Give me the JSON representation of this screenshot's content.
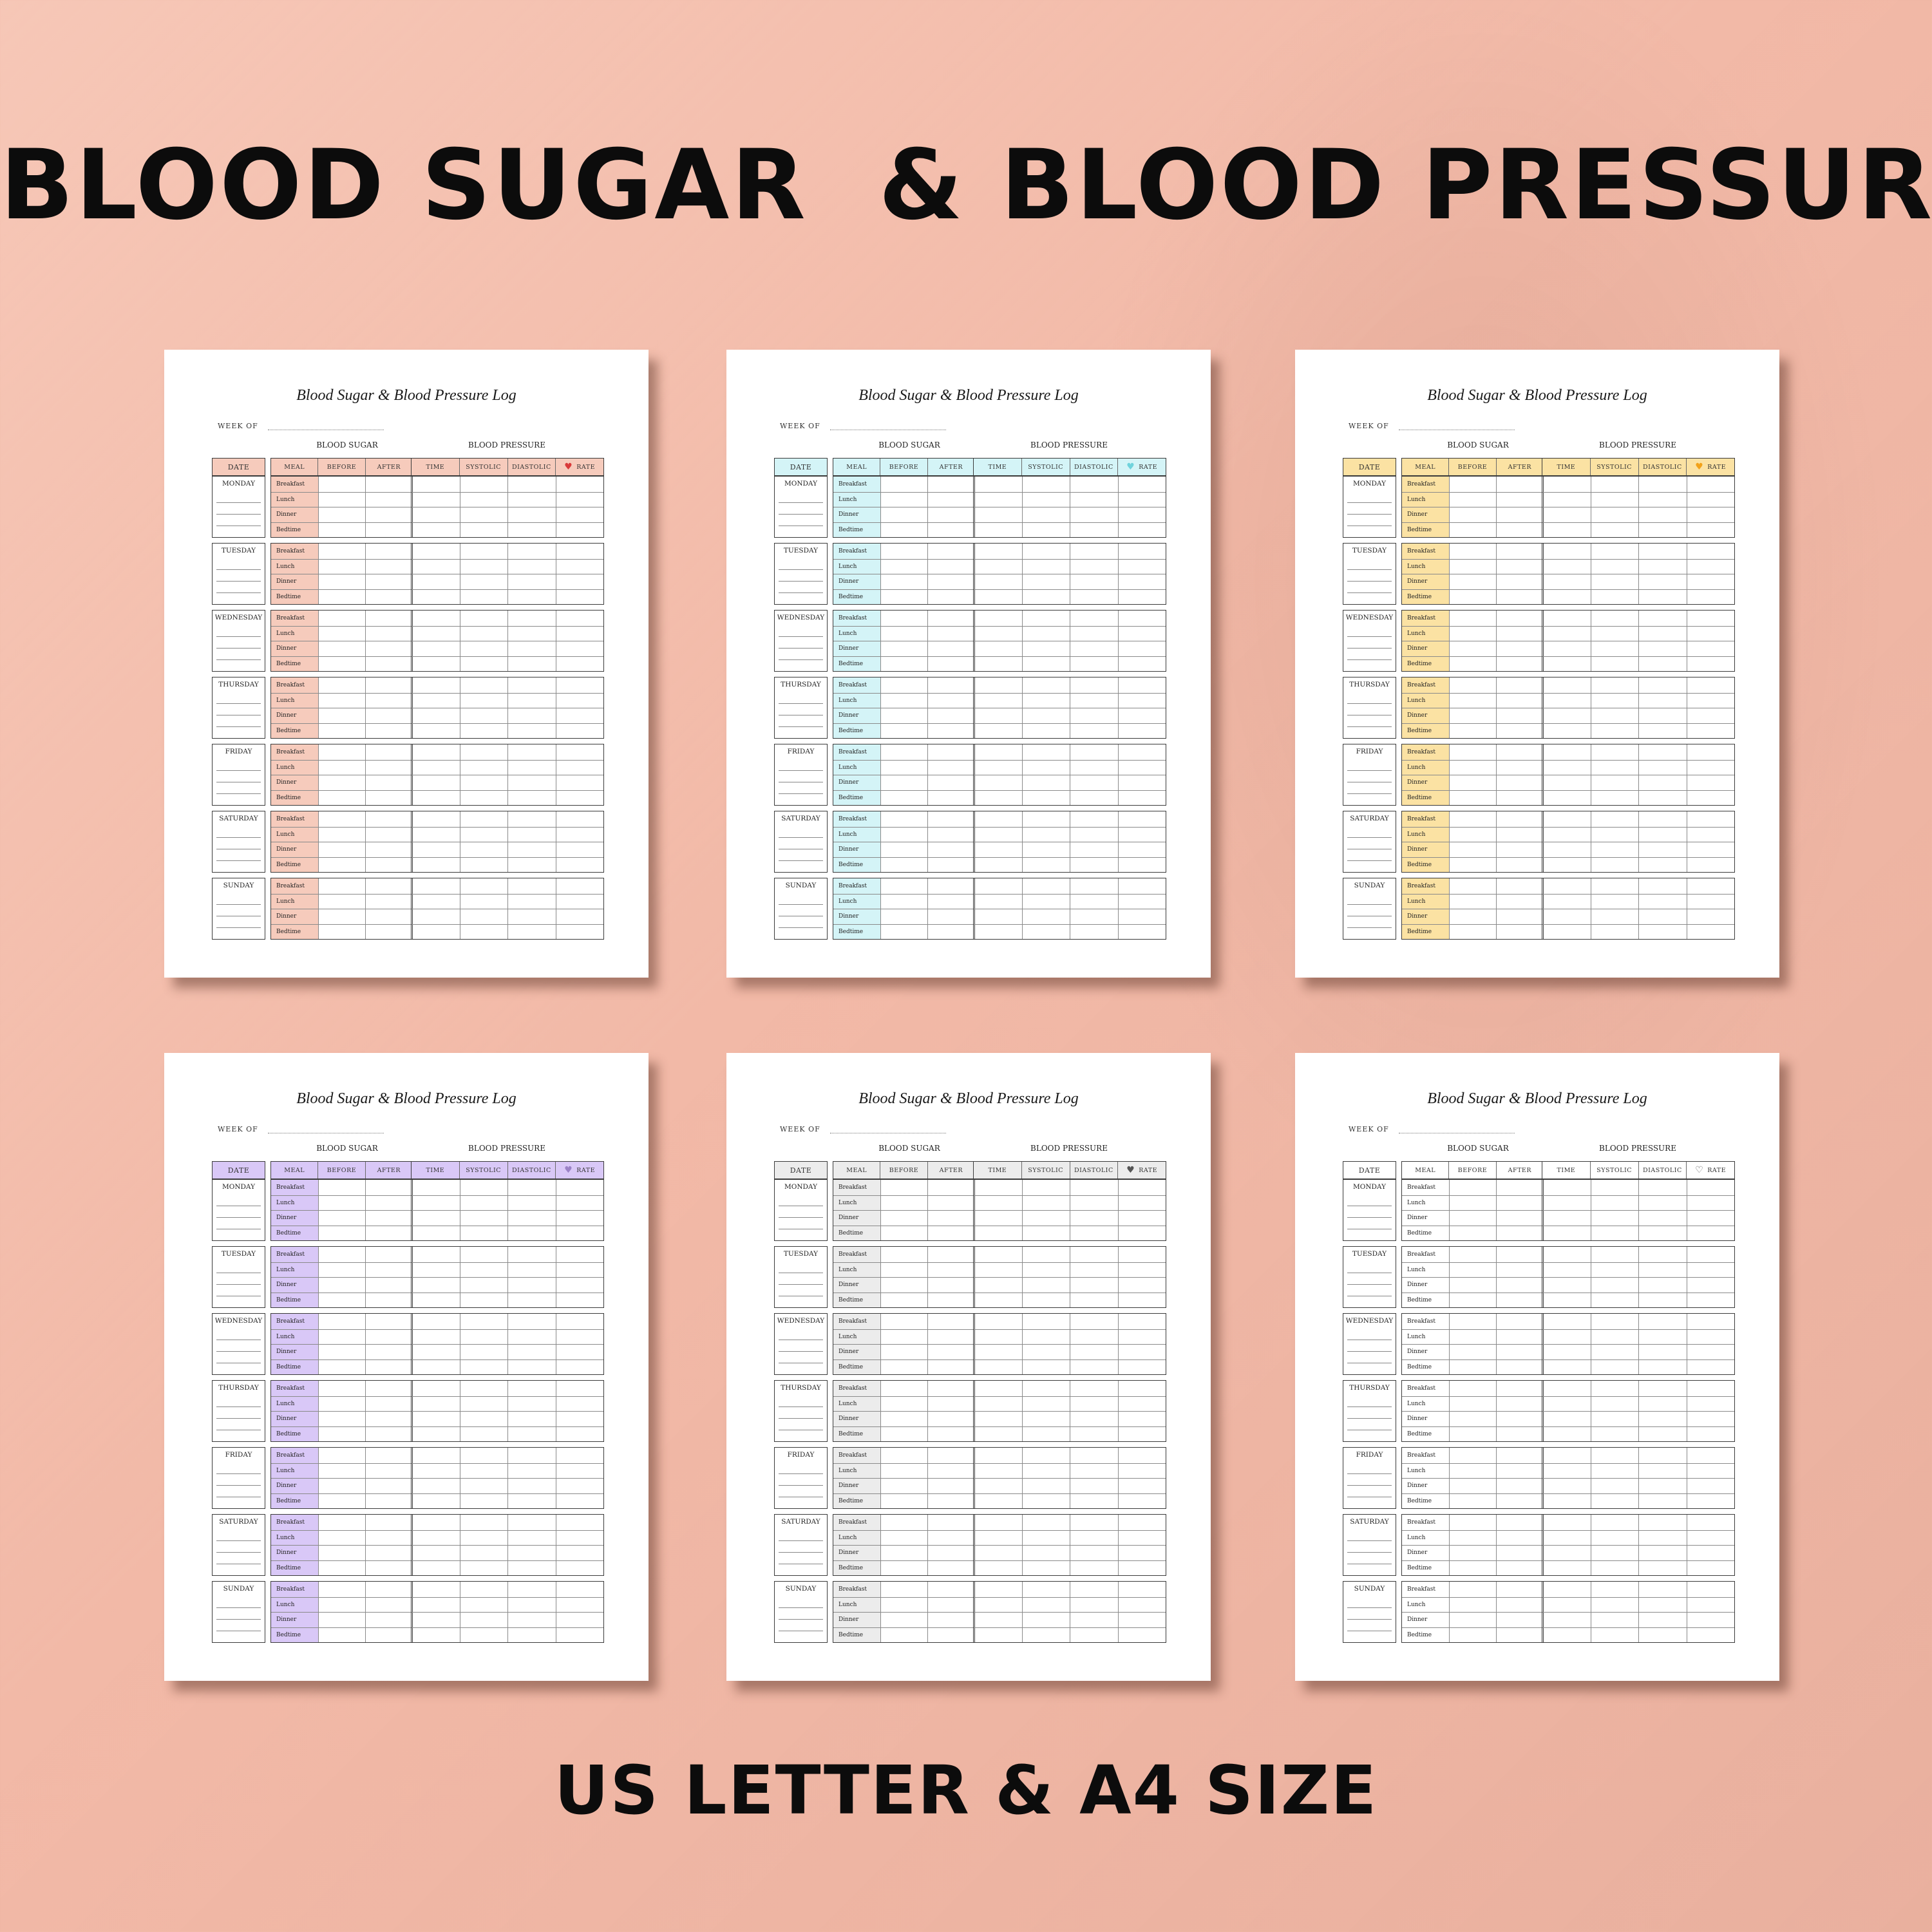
{
  "headline": "BLOOD SUGAR  & BLOOD PRESSURE",
  "footline": "US LETTER & A4 SIZE",
  "sheet": {
    "title": "Blood Sugar & Blood Pressure Log",
    "week_label": "WEEK OF",
    "sugar_label": "BLOOD SUGAR",
    "bp_label": "BLOOD PRESSURE",
    "headers": {
      "date": "DATE",
      "meal": "MEAL",
      "before": "BEFORE",
      "after": "AFTER",
      "time": "TIME",
      "systolic": "SYSTOLIC",
      "diastolic": "DIASTOLIC",
      "rate": "RATE"
    },
    "days": [
      "MONDAY",
      "TUESDAY",
      "WEDNESDAY",
      "THURSDAY",
      "FRIDAY",
      "SATURDAY",
      "SUNDAY"
    ],
    "meals": [
      "Breakfast",
      "Lunch",
      "Dinner",
      "Bedtime"
    ]
  },
  "variants": [
    {
      "name": "peach",
      "accent": "#f6cbbc",
      "heart_icon": "heart-filled",
      "heart_color": "#d93a3a"
    },
    {
      "name": "aqua",
      "accent": "#d4f4f7",
      "heart_icon": "heart-filled",
      "heart_color": "#6fd3dc"
    },
    {
      "name": "yellow",
      "accent": "#fbe2a3",
      "heart_icon": "heart-filled",
      "heart_color": "#f2a21a"
    },
    {
      "name": "lavender",
      "accent": "#d9c8f7",
      "heart_icon": "heart-filled",
      "heart_color": "#9b82c6"
    },
    {
      "name": "grey",
      "accent": "#ececec",
      "heart_icon": "heart-filled",
      "heart_color": "#555555"
    },
    {
      "name": "white",
      "accent": "#ffffff",
      "heart_icon": "heart-outline",
      "heart_color": "#555555"
    }
  ]
}
